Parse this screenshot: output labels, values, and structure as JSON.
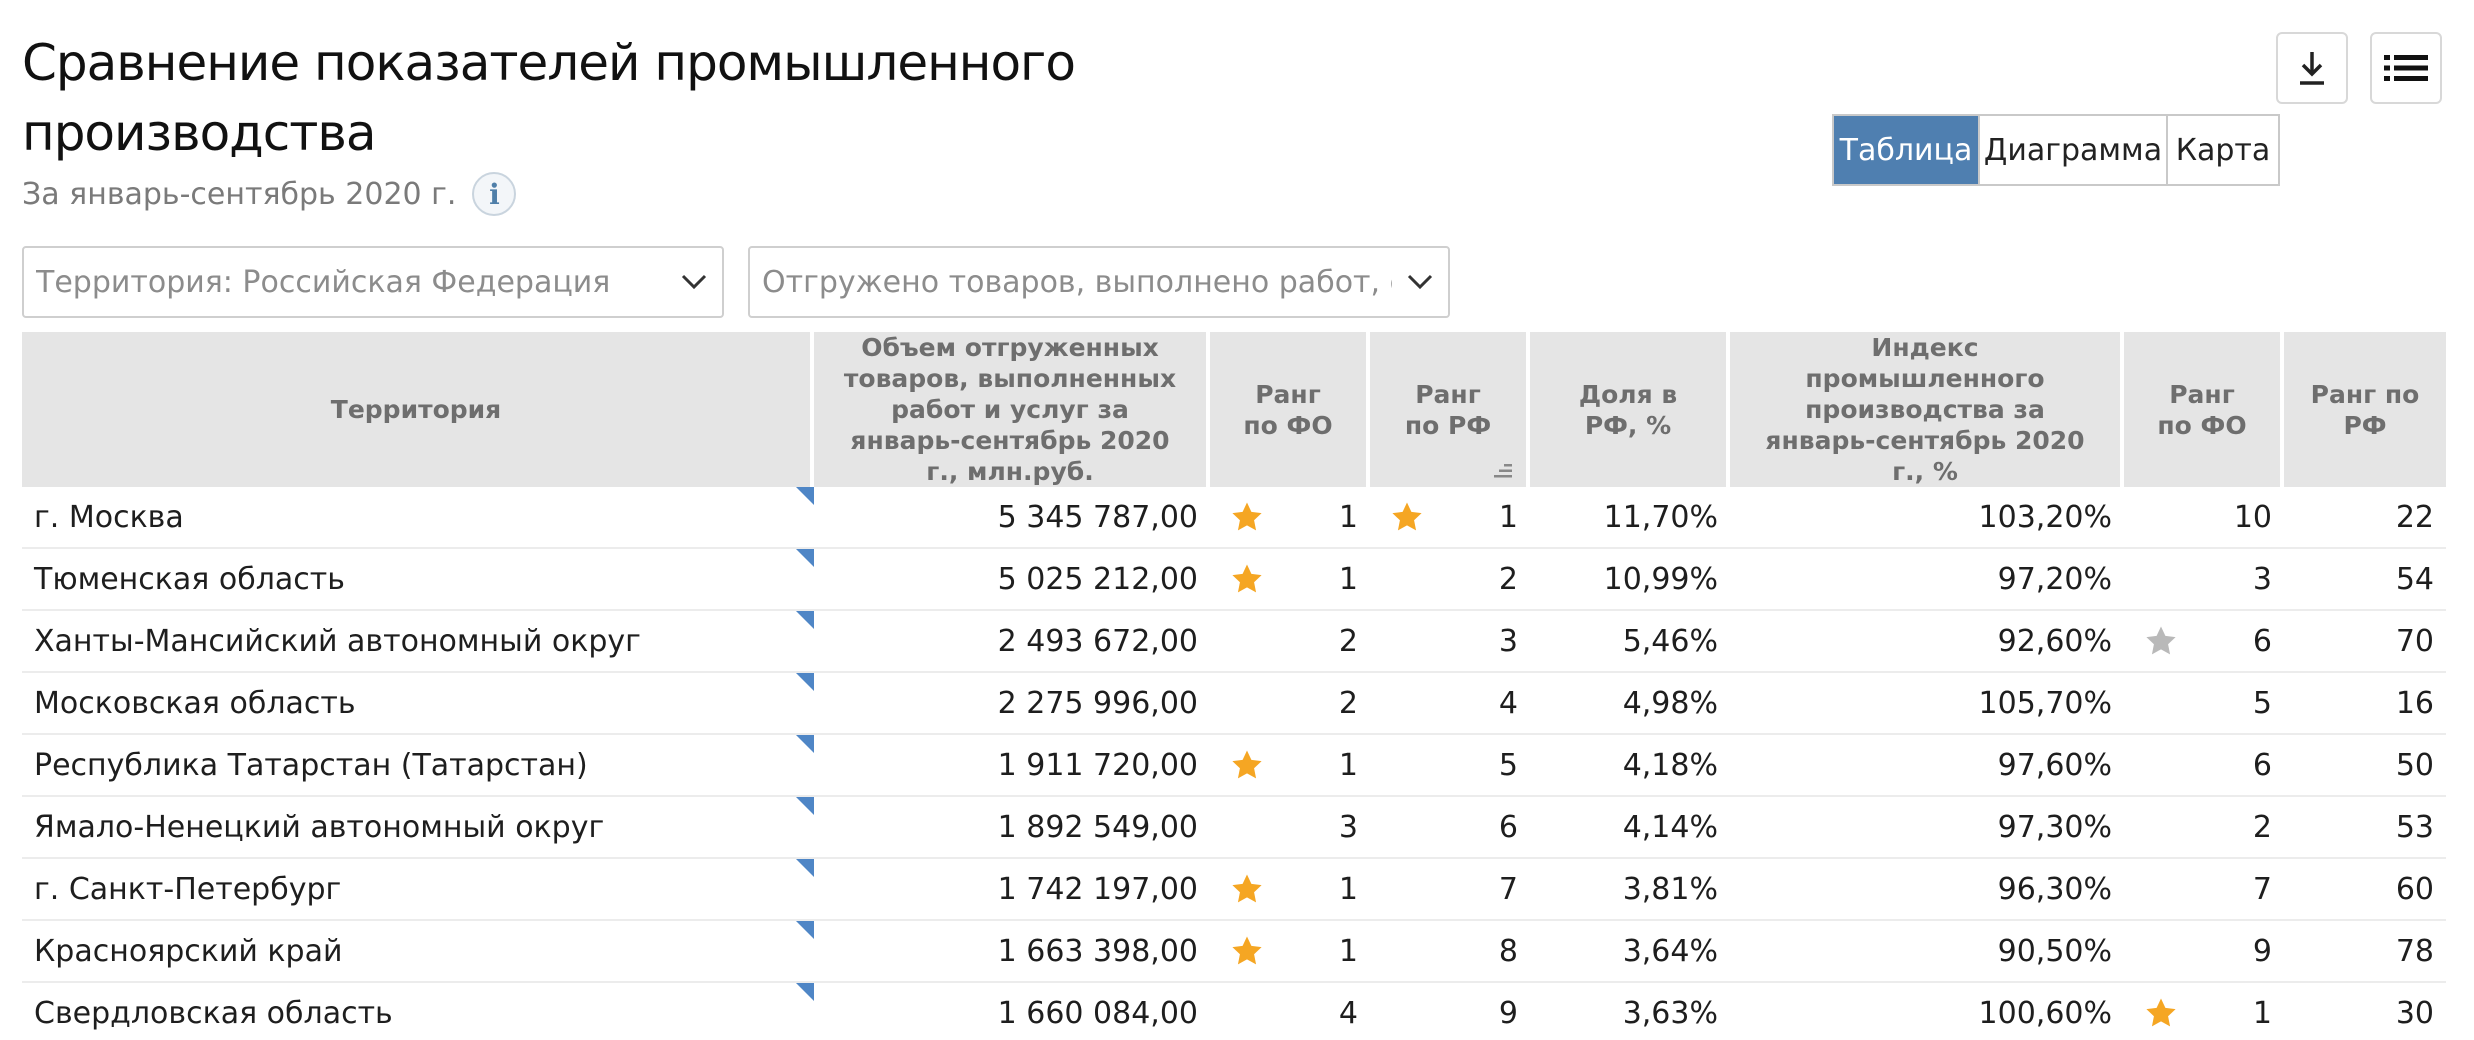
{
  "page": {
    "title": "Сравнение показателей промышленного производства",
    "subtitle": "За январь-сентябрь 2020 г.",
    "info_icon": "i"
  },
  "toolbar": {
    "download_icon": "download-icon",
    "menu_icon": "list-icon"
  },
  "view_switch": {
    "tabs": [
      {
        "label": "Таблица",
        "active": true
      },
      {
        "label": "Диаграмма",
        "active": false
      },
      {
        "label": "Карта",
        "active": false
      }
    ],
    "active_color": "#4f7fb0"
  },
  "filters": {
    "territory": "Территория: Российская  Федерация",
    "indicator": "Отгружено товаров, выполнено работ, оказа"
  },
  "table": {
    "headers": [
      "Территория",
      "Объем отгруженных товаров, выполненных работ и услуг за январь-сентябрь 2020 г., млн.руб.",
      "Ранг по ФО",
      "Ранг по РФ",
      "Доля в РФ, %",
      "Индекс промышленного производства за январь-сентябрь 2020 г., %",
      "Ранг по ФО",
      "Ранг по РФ"
    ],
    "rows": [
      {
        "territory": "г. Москва",
        "volume": "5 345 787,00",
        "rank_fo": "1",
        "rank_fo_star": "orange",
        "rank_rf": "1",
        "rank_rf_star": "orange",
        "share": "11,70%",
        "index": "103,20%",
        "rank_fo2": "10",
        "rank_fo2_star": "",
        "rank_rf2": "22"
      },
      {
        "territory": "Тюменская область",
        "volume": "5 025 212,00",
        "rank_fo": "1",
        "rank_fo_star": "orange",
        "rank_rf": "2",
        "rank_rf_star": "",
        "share": "10,99%",
        "index": "97,20%",
        "rank_fo2": "3",
        "rank_fo2_star": "",
        "rank_rf2": "54"
      },
      {
        "territory": "Ханты-Мансийский автономный округ",
        "volume": "2 493 672,00",
        "rank_fo": "2",
        "rank_fo_star": "",
        "rank_rf": "3",
        "rank_rf_star": "",
        "share": "5,46%",
        "index": "92,60%",
        "rank_fo2": "6",
        "rank_fo2_star": "grey",
        "rank_rf2": "70"
      },
      {
        "territory": "Московская область",
        "volume": "2 275 996,00",
        "rank_fo": "2",
        "rank_fo_star": "",
        "rank_rf": "4",
        "rank_rf_star": "",
        "share": "4,98%",
        "index": "105,70%",
        "rank_fo2": "5",
        "rank_fo2_star": "",
        "rank_rf2": "16"
      },
      {
        "territory": "Республика Татарстан (Татарстан)",
        "volume": "1 911 720,00",
        "rank_fo": "1",
        "rank_fo_star": "orange",
        "rank_rf": "5",
        "rank_rf_star": "",
        "share": "4,18%",
        "index": "97,60%",
        "rank_fo2": "6",
        "rank_fo2_star": "",
        "rank_rf2": "50"
      },
      {
        "territory": "Ямало-Ненецкий автономный округ",
        "volume": "1 892 549,00",
        "rank_fo": "3",
        "rank_fo_star": "",
        "rank_rf": "6",
        "rank_rf_star": "",
        "share": "4,14%",
        "index": "97,30%",
        "rank_fo2": "2",
        "rank_fo2_star": "",
        "rank_rf2": "53"
      },
      {
        "territory": "г. Санкт-Петербург",
        "volume": "1 742 197,00",
        "rank_fo": "1",
        "rank_fo_star": "orange",
        "rank_rf": "7",
        "rank_rf_star": "",
        "share": "3,81%",
        "index": "96,30%",
        "rank_fo2": "7",
        "rank_fo2_star": "",
        "rank_rf2": "60"
      },
      {
        "territory": "Красноярский край",
        "volume": "1 663 398,00",
        "rank_fo": "1",
        "rank_fo_star": "orange",
        "rank_rf": "8",
        "rank_rf_star": "",
        "share": "3,64%",
        "index": "90,50%",
        "rank_fo2": "9",
        "rank_fo2_star": "",
        "rank_rf2": "78"
      },
      {
        "territory": "Свердловская область",
        "volume": "1 660 084,00",
        "rank_fo": "4",
        "rank_fo_star": "",
        "rank_rf": "9",
        "rank_rf_star": "",
        "share": "3,63%",
        "index": "100,60%",
        "rank_fo2": "1",
        "rank_fo2_star": "orange",
        "rank_rf2": "30"
      }
    ]
  },
  "colors": {
    "star_orange": "#f5a623",
    "star_grey": "#b9b9b9",
    "corner_marker": "#4f86c6",
    "header_bg": "#e5e5e5"
  }
}
